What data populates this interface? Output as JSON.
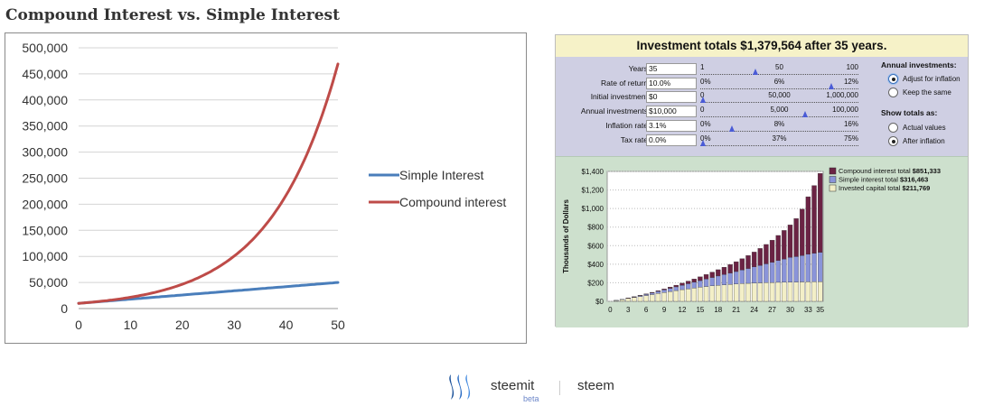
{
  "page_title": "Compound Interest vs. Simple Interest",
  "chart_data": [
    {
      "type": "line",
      "title": "",
      "xlabel": "",
      "ylabel": "",
      "x": [
        0,
        5,
        10,
        15,
        20,
        25,
        30,
        35,
        40,
        45,
        50
      ],
      "xlim": [
        0,
        50
      ],
      "xticks": [
        "0",
        "10",
        "20",
        "30",
        "40",
        "50"
      ],
      "ylim": [
        0,
        500000
      ],
      "yticks": [
        "0",
        "50,000",
        "100,000",
        "150,000",
        "200,000",
        "250,000",
        "300,000",
        "350,000",
        "400,000",
        "450,000",
        "500,000"
      ],
      "grid": true,
      "legend": "right",
      "series": [
        {
          "name": "Simple Interest",
          "color": "#4a7ebb",
          "values": [
            10000,
            14000,
            18000,
            22000,
            26000,
            30000,
            34000,
            38000,
            42000,
            46000,
            50000
          ]
        },
        {
          "name": "Compound interest",
          "color": "#be4b48",
          "values": [
            10000,
            14690,
            21589,
            31722,
            46610,
            68485,
            100627,
            147853,
            217245,
            319204,
            469016
          ]
        }
      ]
    },
    {
      "type": "bar",
      "stacked": true,
      "title": "Investment totals $1,379,564 after 35 years.",
      "ylabel": "Thousands of Dollars",
      "ylim": [
        0,
        1400
      ],
      "yticks": [
        "$1,400",
        "$1,200",
        "$1,000",
        "$800",
        "$600",
        "$400",
        "$200",
        "$0"
      ],
      "xticks": [
        "0",
        "3",
        "6",
        "9",
        "12",
        "15",
        "18",
        "21",
        "24",
        "27",
        "30",
        "33",
        "35"
      ],
      "legend": "top-right",
      "series": [
        {
          "name": "Invested capital total",
          "total": "$211,769",
          "color": "#f3efc7",
          "values": [
            0,
            10,
            20,
            31,
            41,
            52,
            63,
            73,
            84,
            95,
            106,
            116,
            126,
            135,
            144,
            152,
            160,
            167,
            173,
            178,
            183,
            187,
            191,
            194,
            197,
            199,
            201,
            203,
            205,
            206,
            207,
            208,
            209,
            210,
            211,
            212
          ]
        },
        {
          "name": "Simple interest total",
          "total": "$316,463",
          "color": "#8a94d9",
          "values": [
            0,
            1,
            2,
            4,
            7,
            10,
            14,
            18,
            23,
            28,
            34,
            40,
            47,
            55,
            63,
            71,
            80,
            90,
            100,
            111,
            122,
            134,
            147,
            160,
            174,
            188,
            203,
            218,
            234,
            250,
            266,
            274,
            285,
            297,
            307,
            316
          ]
        },
        {
          "name": "Compound interest total",
          "total": "$851,333",
          "color": "#6b2344",
          "values": [
            0,
            0,
            0,
            1,
            2,
            3,
            4,
            6,
            8,
            11,
            14,
            18,
            23,
            28,
            34,
            41,
            49,
            58,
            68,
            79,
            92,
            106,
            122,
            140,
            160,
            183,
            209,
            238,
            271,
            308,
            350,
            410,
            500,
            620,
            730,
            851
          ]
        }
      ]
    }
  ],
  "calculator": {
    "header": "Investment totals $1,379,564 after 35 years.",
    "rows": [
      {
        "label": "Years",
        "value": "35",
        "ticks": [
          "1",
          "50",
          "100"
        ],
        "level": 0.34
      },
      {
        "label": "Rate of return",
        "value": "10.0%",
        "ticks": [
          "0%",
          "6%",
          "12%"
        ],
        "level": 0.83
      },
      {
        "label": "Initial investment",
        "value": "$0",
        "ticks": [
          "0",
          "50,000",
          "1,000,000"
        ],
        "level": 0.0
      },
      {
        "label": "Annual investments",
        "value": "$10,000",
        "ticks": [
          "0",
          "5,000",
          "100,000"
        ],
        "level": 0.66
      },
      {
        "label": "Inflation rate",
        "value": "3.1%",
        "ticks": [
          "0%",
          "8%",
          "16%"
        ],
        "level": 0.19
      },
      {
        "label": "Tax rate",
        "value": "0.0%",
        "ticks": [
          "0%",
          "37%",
          "75%"
        ],
        "level": 0.0
      }
    ],
    "annual_title": "Annual investments:",
    "annual_options": [
      {
        "label": "Adjust for inflation",
        "selected": true
      },
      {
        "label": "Keep the same",
        "selected": false
      }
    ],
    "totals_title": "Show totals as:",
    "totals_options": [
      {
        "label": "Actual values",
        "selected": false
      },
      {
        "label": "After inflation",
        "selected": true
      }
    ]
  },
  "brand": {
    "name": "steemit",
    "beta": "beta",
    "token": "steem",
    "logo_icon": "steemit-logo-icon",
    "color": "#1a5099"
  }
}
